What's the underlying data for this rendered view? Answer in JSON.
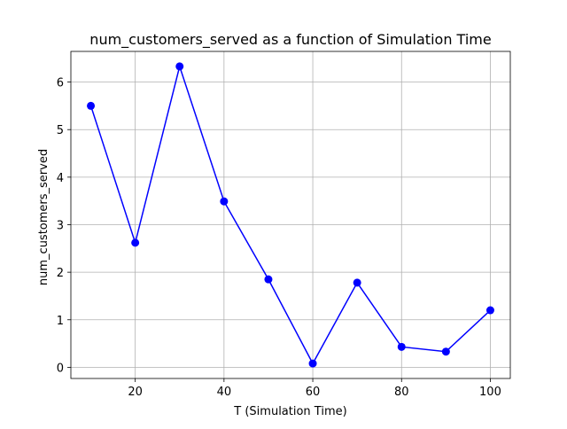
{
  "chart_data": {
    "type": "line",
    "title": "num_customers_served as a function of Simulation Time",
    "xlabel": "T (Simulation Time)",
    "ylabel": "num_customers_served",
    "x": [
      10,
      20,
      30,
      40,
      50,
      60,
      70,
      80,
      90,
      100
    ],
    "series": [
      {
        "values": [
          5.5,
          2.62,
          6.33,
          3.49,
          1.85,
          0.08,
          1.78,
          0.43,
          0.33,
          1.2
        ],
        "color": "#0000ff",
        "marker": "circle"
      }
    ],
    "xlim": [
      5.5,
      104.5
    ],
    "ylim": [
      -0.235,
      6.645
    ],
    "xticks": [
      20,
      40,
      60,
      80,
      100
    ],
    "yticks": [
      0,
      1,
      2,
      3,
      4,
      5,
      6
    ],
    "grid": true,
    "legend": "none"
  }
}
